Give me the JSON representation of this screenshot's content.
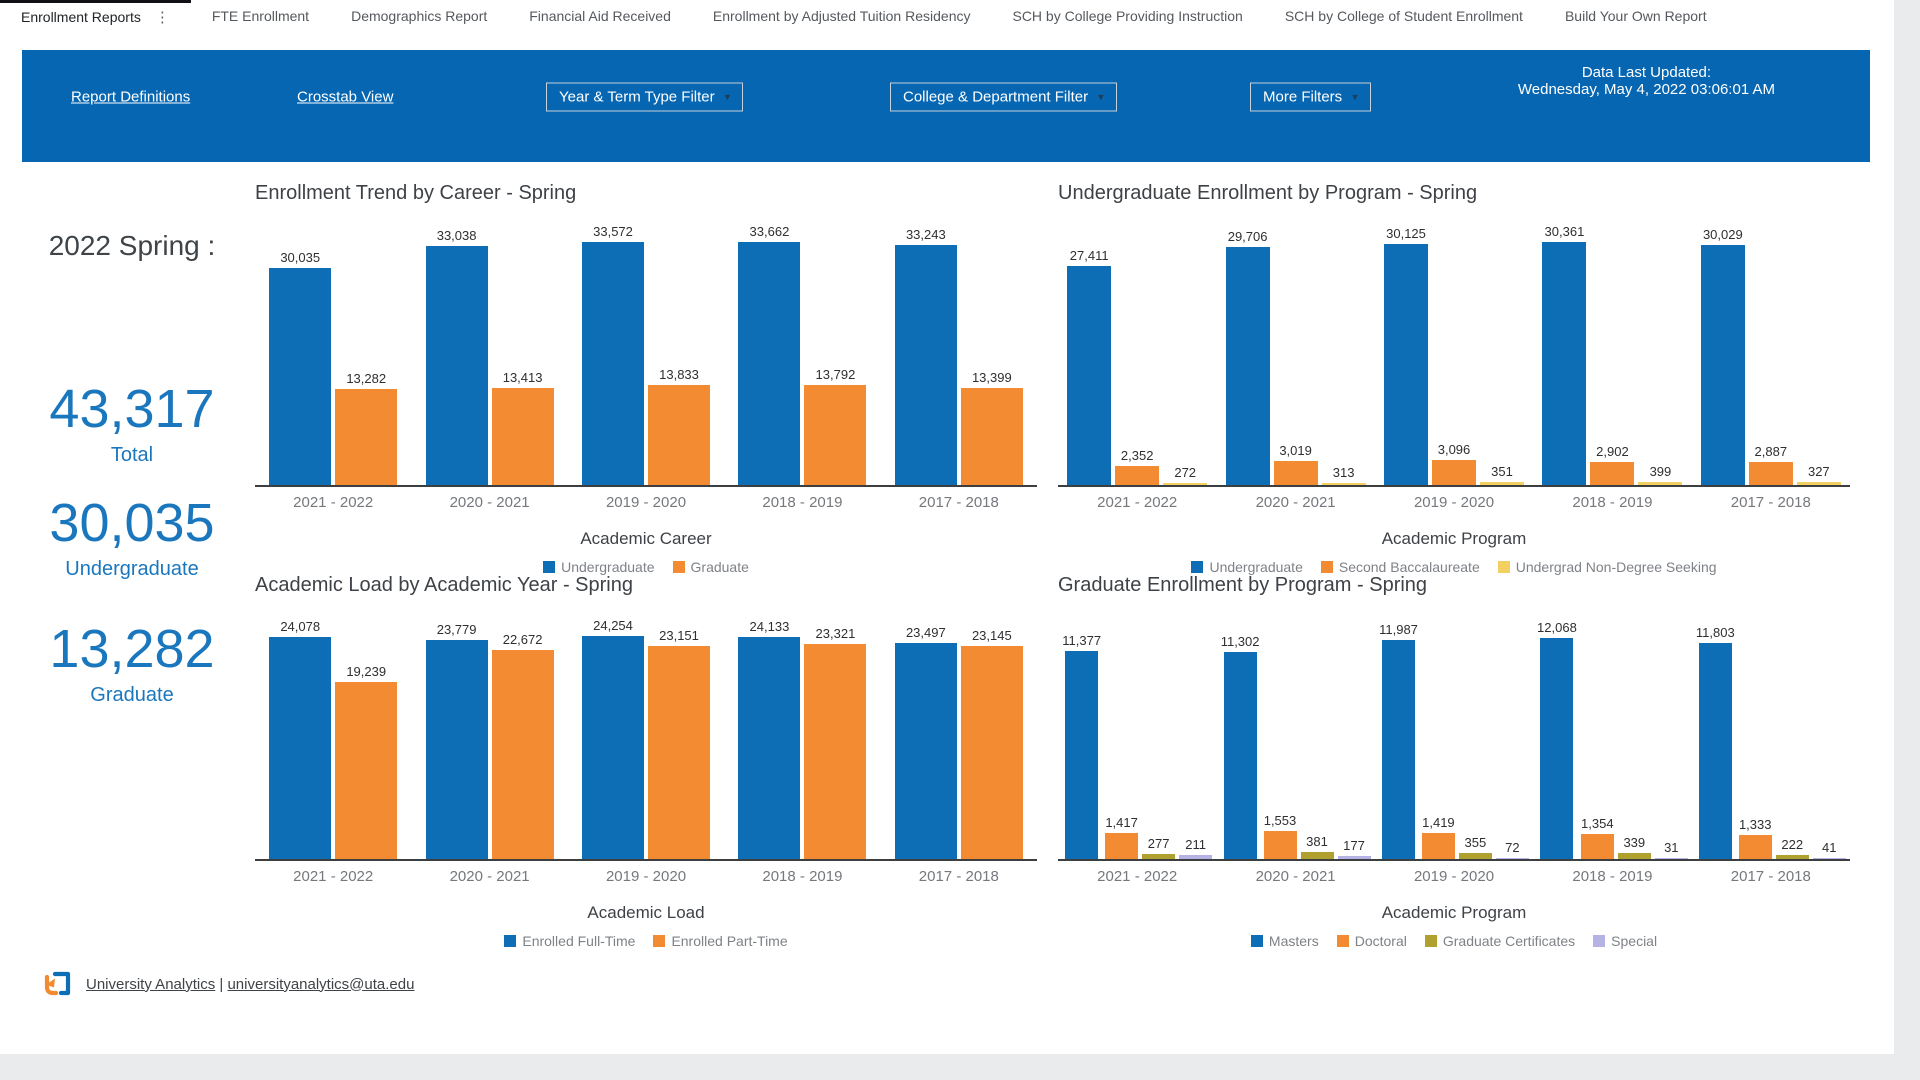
{
  "tabs": {
    "active": "Enrollment Reports",
    "items": [
      "Enrollment Reports",
      "FTE Enrollment",
      "Demographics Report",
      "Financial Aid Received",
      "Enrollment by Adjusted Tuition Residency",
      "SCH by College Providing Instruction",
      "SCH by College of Student Enrollment",
      "Build Your Own Report"
    ],
    "menu_icon": "⋮"
  },
  "toolbar": {
    "report_definitions": "Report Definitions",
    "crosstab_view": "Crosstab View",
    "year_term_filter": "Year & Term Type Filter",
    "college_dept_filter": "College & Department Filter",
    "more_filters": "More Filters",
    "caret": "▾",
    "updated_label": "Data Last Updated:",
    "updated_value": "Wednesday, May 4, 2022 03:06:01 AM"
  },
  "kpi": {
    "term_label": "2022 Spring :",
    "total_value": "43,317",
    "total_label": "Total",
    "undergrad_value": "30,035",
    "undergrad_label": "Undergraduate",
    "graduate_value": "13,282",
    "graduate_label": "Graduate"
  },
  "footer": {
    "org": "University Analytics",
    "separator": "|",
    "email": "universityanalytics@uta.edu"
  },
  "colors": {
    "header_blue": "#0666b2",
    "kpi_blue": "#1b77bd",
    "bar_blue": "#0d6db5",
    "bar_orange": "#f28b31",
    "bar_yellow": "#f2d162",
    "bar_olive": "#b0a030",
    "bar_purple": "#b5b2e5"
  },
  "chart_data": [
    {
      "type": "bar",
      "title": "Enrollment Trend by Career - Spring",
      "categories": [
        "2021 - 2022",
        "2020 - 2021",
        "2019 - 2020",
        "2018 - 2019",
        "2017 - 2018"
      ],
      "series": [
        {
          "name": "Undergraduate",
          "color": "#0d6db5",
          "values": [
            30035,
            33038,
            33572,
            33662,
            33243
          ]
        },
        {
          "name": "Graduate",
          "color": "#f28b31",
          "values": [
            13282,
            13413,
            13833,
            13792,
            13399
          ]
        }
      ],
      "xlabel": "Academic Career",
      "ylim": [
        0,
        37600
      ],
      "grid": false,
      "legend_position": "bottom"
    },
    {
      "type": "bar",
      "title": "Undergraduate Enrollment by Program - Spring",
      "categories": [
        "2021 - 2022",
        "2020 - 2021",
        "2019 - 2020",
        "2018 - 2019",
        "2017 - 2018"
      ],
      "series": [
        {
          "name": "Undergraduate",
          "color": "#0d6db5",
          "values": [
            27411,
            29706,
            30125,
            30361,
            30029
          ]
        },
        {
          "name": "Second Baccalaureate",
          "color": "#f28b31",
          "values": [
            2352,
            3019,
            3096,
            2902,
            2887
          ]
        },
        {
          "name": "Undergrad Non-Degree Seeking",
          "color": "#f2d162",
          "values": [
            272,
            313,
            351,
            399,
            327
          ]
        }
      ],
      "xlabel": "Academic Program",
      "ylim": [
        0,
        34000
      ],
      "grid": false,
      "legend_position": "bottom"
    },
    {
      "type": "bar",
      "title": "Academic Load by Academic Year - Spring",
      "categories": [
        "2021 - 2022",
        "2020 - 2021",
        "2019 - 2020",
        "2018 - 2019",
        "2017 - 2018"
      ],
      "series": [
        {
          "name": "Enrolled Full-Time",
          "color": "#0d6db5",
          "values": [
            24078,
            23779,
            24254,
            24133,
            23497
          ]
        },
        {
          "name": "Enrolled Part-Time",
          "color": "#f28b31",
          "values": [
            19239,
            22672,
            23151,
            23321,
            23145
          ]
        }
      ],
      "xlabel": "Academic Load",
      "ylim": [
        0,
        27600
      ],
      "grid": false,
      "legend_position": "bottom"
    },
    {
      "type": "bar",
      "title": "Graduate Enrollment by Program - Spring",
      "categories": [
        "2021 - 2022",
        "2020 - 2021",
        "2019 - 2020",
        "2018 - 2019",
        "2017 - 2018"
      ],
      "series": [
        {
          "name": "Masters",
          "color": "#0d6db5",
          "values": [
            11377,
            11302,
            11987,
            12068,
            11803
          ]
        },
        {
          "name": "Doctoral",
          "color": "#f28b31",
          "values": [
            1417,
            1553,
            1419,
            1354,
            1333
          ]
        },
        {
          "name": "Graduate Certificates",
          "color": "#b0a030",
          "values": [
            277,
            381,
            355,
            339,
            222
          ]
        },
        {
          "name": "Special",
          "color": "#b5b2e5",
          "values": [
            211,
            177,
            72,
            31,
            41
          ]
        }
      ],
      "xlabel": "Academic Program",
      "ylim": [
        0,
        13900
      ],
      "grid": false,
      "legend_position": "bottom"
    }
  ]
}
